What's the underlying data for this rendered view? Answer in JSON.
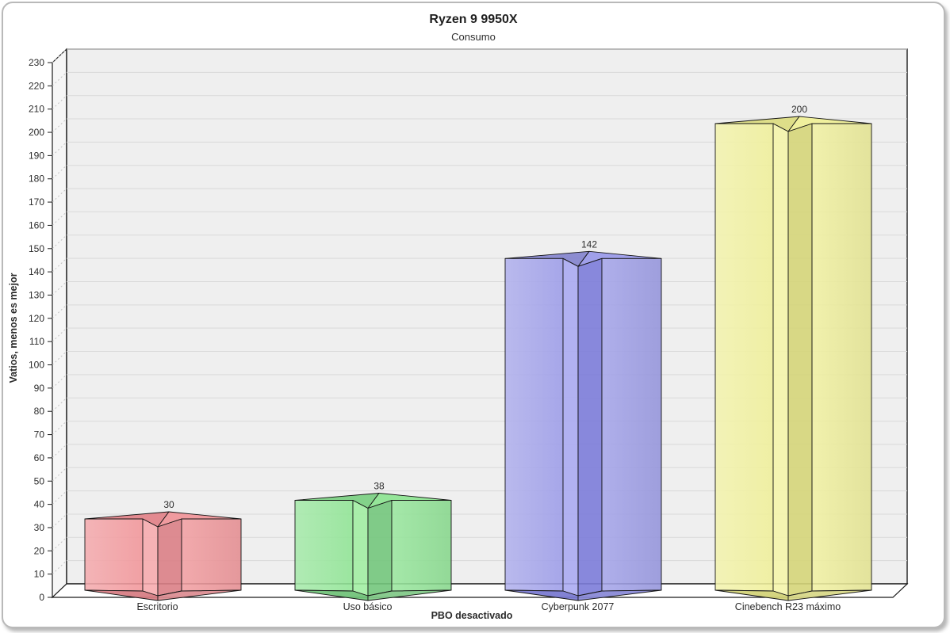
{
  "header": {
    "title": "Ryzen 9 9950X",
    "subtitle": "Consumo"
  },
  "chart_data": {
    "type": "bar",
    "style": "3d-star-extruded-columns",
    "title": "Ryzen 9 9950X",
    "subtitle": "Consumo",
    "xlabel": "PBO desactivado",
    "ylabel": "Vatios, menos es mejor",
    "categories": [
      "Escritorio",
      "Uso básico",
      "Cyberpunk 2077",
      "Cinebench R23 máximo"
    ],
    "values": [
      30,
      38,
      142,
      200
    ],
    "value_labels": [
      "30",
      "38",
      "142",
      "200"
    ],
    "ylim": [
      0,
      230
    ],
    "ytick_step": 10,
    "grid": true,
    "legend": "none",
    "plot_bg": "#efefef",
    "wall_bg": "#f6f6f6",
    "floor_bg": "#ffffff",
    "grid_color": "#d9d9d9",
    "axis_color": "#1a1a1a",
    "text_color": "#2b2b2b",
    "bar_palettes": [
      {
        "name": "red",
        "panel": "#F19599",
        "light": "#F7AAAD",
        "dark": "#DA7F86",
        "topL": "#E2868C",
        "topR": "#EF989C",
        "bottom": "#D67B81"
      },
      {
        "name": "green",
        "panel": "#8FE494",
        "light": "#9FEEA1",
        "dark": "#73C77C",
        "topL": "#7FD186",
        "topR": "#92E496",
        "bottom": "#6EC176"
      },
      {
        "name": "blue",
        "panel": "#9C9CE8",
        "light": "#A9A9F1",
        "dark": "#7C7CD9",
        "topL": "#8989CF",
        "topR": "#9D9DE9",
        "bottom": "#7777D0"
      },
      {
        "name": "yellow",
        "panel": "#EFEF99",
        "light": "#F5F5A8",
        "dark": "#D5D579",
        "topL": "#DDDD85",
        "topR": "#EFEF9A",
        "bottom": "#D1D175"
      }
    ]
  }
}
